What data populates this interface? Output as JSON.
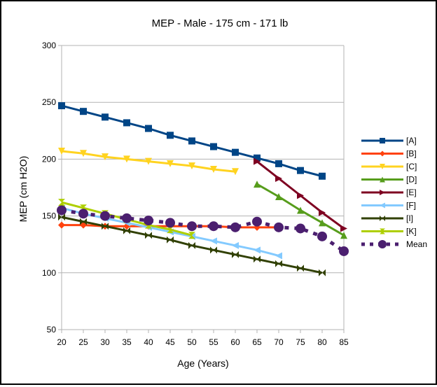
{
  "chart_data": {
    "type": "line",
    "title": "MEP - Male - 175 cm - 171 lb",
    "xlabel": "Age (Years)",
    "ylabel": "MEP (cm H2O)",
    "xlim": [
      20,
      85
    ],
    "ylim": [
      50,
      300
    ],
    "x_ticks": [
      20,
      25,
      30,
      35,
      40,
      45,
      50,
      55,
      60,
      65,
      70,
      75,
      80,
      85
    ],
    "y_ticks": [
      50,
      100,
      150,
      200,
      250,
      300
    ],
    "grid": "horizontal",
    "legend_position": "right",
    "series": [
      {
        "name": "[A]",
        "color": "#004586",
        "marker": "square",
        "dash": false,
        "x": [
          20,
          25,
          30,
          35,
          40,
          45,
          50,
          55,
          60,
          65,
          70,
          75,
          80
        ],
        "values": [
          247,
          242,
          237,
          232,
          227,
          221,
          216,
          211,
          206,
          201,
          196,
          190,
          185
        ]
      },
      {
        "name": "[B]",
        "color": "#ff420e",
        "marker": "diamond",
        "dash": false,
        "x": [
          20,
          25,
          30,
          35,
          40,
          45,
          50,
          55,
          60,
          65,
          70
        ],
        "values": [
          142,
          142,
          141,
          141,
          141,
          141,
          141,
          141,
          140,
          140,
          140
        ]
      },
      {
        "name": "[C]",
        "color": "#ffd320",
        "marker": "triangle-down",
        "dash": false,
        "x": [
          20,
          25,
          30,
          35,
          40,
          45,
          50,
          55,
          60
        ],
        "values": [
          207,
          205,
          202,
          200,
          198,
          196,
          194,
          191,
          189
        ]
      },
      {
        "name": "[D]",
        "color": "#579d1c",
        "marker": "triangle-up",
        "dash": false,
        "x": [
          65,
          70,
          75,
          80,
          85
        ],
        "values": [
          178,
          167,
          155,
          144,
          133
        ]
      },
      {
        "name": "[E]",
        "color": "#7e0021",
        "marker": "triangle-right",
        "dash": false,
        "x": [
          65,
          70,
          75,
          80,
          85
        ],
        "values": [
          198,
          183,
          168,
          153,
          139
        ]
      },
      {
        "name": "[F]",
        "color": "#83caff",
        "marker": "triangle-left",
        "dash": false,
        "x": [
          20,
          25,
          30,
          35,
          40,
          45,
          50,
          55,
          60,
          65,
          70
        ],
        "values": [
          157,
          152,
          148,
          144,
          140,
          136,
          132,
          128,
          124,
          120,
          115
        ]
      },
      {
        "name": "[I]",
        "color": "#314004",
        "marker": "bowtie",
        "dash": false,
        "x": [
          20,
          25,
          30,
          35,
          40,
          45,
          50,
          55,
          60,
          65,
          70,
          75,
          80
        ],
        "values": [
          149,
          145,
          141,
          137,
          133,
          129,
          124,
          120,
          116,
          112,
          108,
          104,
          100
        ]
      },
      {
        "name": "[K]",
        "color": "#aecf00",
        "marker": "hourglass",
        "dash": false,
        "x": [
          20,
          25,
          30,
          35,
          40,
          45,
          50
        ],
        "values": [
          162,
          157,
          152,
          147,
          142,
          138,
          133
        ]
      },
      {
        "name": "Mean",
        "color": "#4b1f6f",
        "marker": "circle",
        "dash": true,
        "x": [
          20,
          25,
          30,
          35,
          40,
          45,
          50,
          55,
          60,
          65,
          70,
          75,
          80,
          85
        ],
        "values": [
          155,
          152,
          150,
          148,
          146,
          144,
          141,
          141,
          140,
          145,
          140,
          139,
          132,
          119
        ]
      }
    ]
  }
}
